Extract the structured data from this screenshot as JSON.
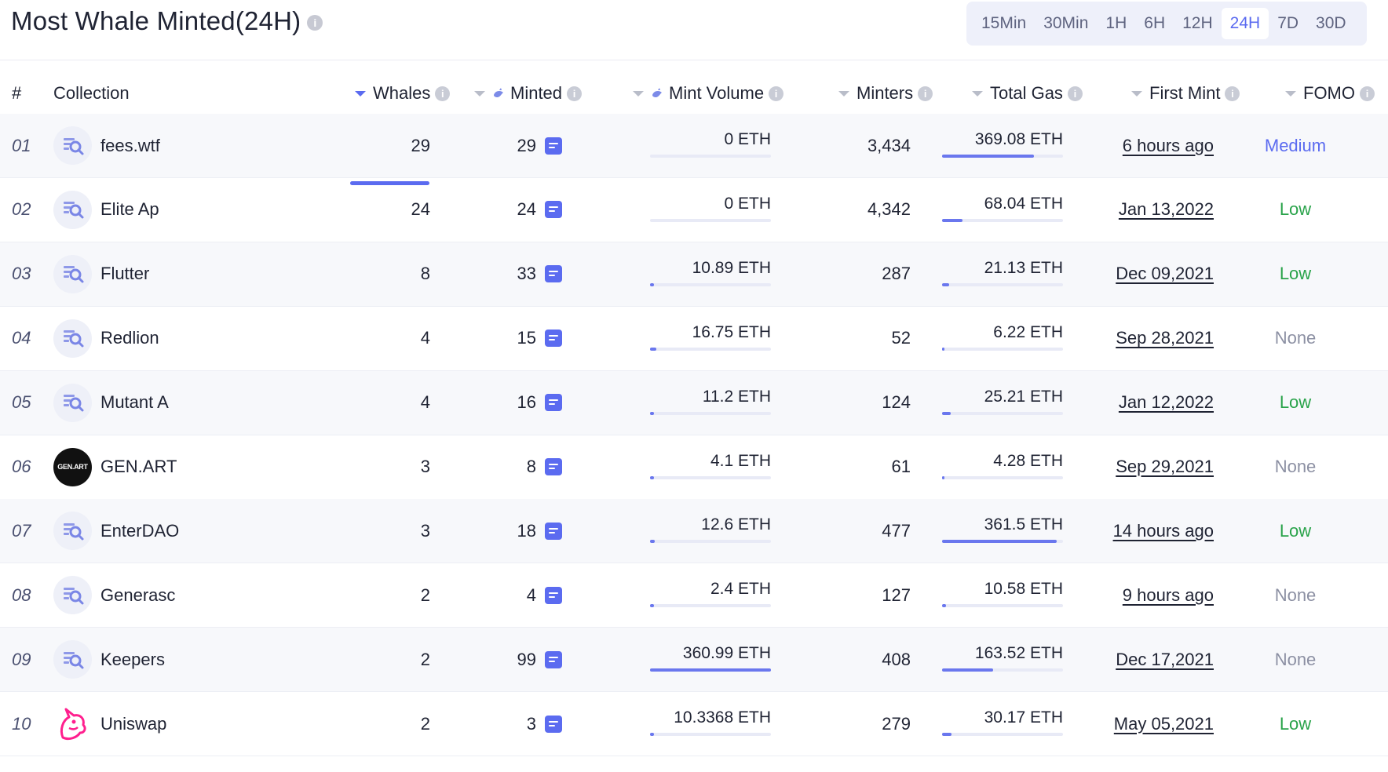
{
  "header": {
    "title": "Most Whale Minted(24H)",
    "info_icon": "i",
    "periods": [
      "15Min",
      "30Min",
      "1H",
      "6H",
      "12H",
      "24H",
      "7D",
      "30D"
    ],
    "active_period": "24H"
  },
  "table": {
    "columns": {
      "rank": "#",
      "collection": "Collection",
      "whales": "Whales",
      "minted": "Minted",
      "mint_volume": "Mint Volume",
      "minters": "Minters",
      "total_gas": "Total Gas",
      "first_mint": "First Mint",
      "fomo": "FOMO"
    },
    "sorted_by": "Whales",
    "rows": [
      {
        "rank": "01",
        "name": "fees.wtf",
        "avatar": "search-icon",
        "whales": "29",
        "minted": "29",
        "mint_volume": "0 ETH",
        "volume_level": 0,
        "minters": "3,434",
        "total_gas": "369.08 ETH",
        "gas_level": 0.76,
        "first_mint": "6 hours ago",
        "fomo": "Medium",
        "fomo_class": "medium"
      },
      {
        "rank": "02",
        "name": "Elite Ap",
        "avatar": "search-icon",
        "whales": "24",
        "minted": "24",
        "mint_volume": "0 ETH",
        "volume_level": 0,
        "minters": "4,342",
        "total_gas": "68.04 ETH",
        "gas_level": 0.17,
        "first_mint": "Jan 13,2022",
        "fomo": "Low",
        "fomo_class": "low"
      },
      {
        "rank": "03",
        "name": "Flutter",
        "avatar": "search-icon",
        "whales": "8",
        "minted": "33",
        "mint_volume": "10.89 ETH",
        "volume_level": 0.03,
        "minters": "287",
        "total_gas": "21.13 ETH",
        "gas_level": 0.06,
        "first_mint": "Dec 09,2021",
        "fomo": "Low",
        "fomo_class": "low"
      },
      {
        "rank": "04",
        "name": "Redlion",
        "avatar": "search-icon",
        "whales": "4",
        "minted": "15",
        "mint_volume": "16.75 ETH",
        "volume_level": 0.05,
        "minters": "52",
        "total_gas": "6.22 ETH",
        "gas_level": 0.02,
        "first_mint": "Sep 28,2021",
        "fomo": "None",
        "fomo_class": "none"
      },
      {
        "rank": "05",
        "name": "Mutant A",
        "avatar": "search-icon",
        "whales": "4",
        "minted": "16",
        "mint_volume": "11.2 ETH",
        "volume_level": 0.03,
        "minters": "124",
        "total_gas": "25.21 ETH",
        "gas_level": 0.07,
        "first_mint": "Jan 12,2022",
        "fomo": "Low",
        "fomo_class": "low"
      },
      {
        "rank": "06",
        "name": "GEN.ART",
        "avatar": "GEN.ART",
        "whales": "3",
        "minted": "8",
        "mint_volume": "4.1 ETH",
        "volume_level": 0.01,
        "minters": "61",
        "total_gas": "4.28 ETH",
        "gas_level": 0.01,
        "first_mint": "Sep 29,2021",
        "fomo": "None",
        "fomo_class": "none"
      },
      {
        "rank": "07",
        "name": "EnterDAO",
        "avatar": "search-icon",
        "whales": "3",
        "minted": "18",
        "mint_volume": "12.6 ETH",
        "volume_level": 0.04,
        "minters": "477",
        "total_gas": "361.5 ETH",
        "gas_level": 0.95,
        "first_mint": "14 hours ago",
        "fomo": "Low",
        "fomo_class": "low"
      },
      {
        "rank": "08",
        "name": "Generasc",
        "avatar": "search-icon",
        "whales": "2",
        "minted": "4",
        "mint_volume": "2.4 ETH",
        "volume_level": 0.01,
        "minters": "127",
        "total_gas": "10.58 ETH",
        "gas_level": 0.03,
        "first_mint": "9 hours ago",
        "fomo": "None",
        "fomo_class": "none"
      },
      {
        "rank": "09",
        "name": "Keepers",
        "avatar": "search-icon",
        "whales": "2",
        "minted": "99",
        "mint_volume": "360.99 ETH",
        "volume_level": 1.0,
        "minters": "408",
        "total_gas": "163.52 ETH",
        "gas_level": 0.42,
        "first_mint": "Dec 17,2021",
        "fomo": "None",
        "fomo_class": "none"
      },
      {
        "rank": "10",
        "name": "Uniswap",
        "avatar": "unicorn-icon",
        "whales": "2",
        "minted": "3",
        "mint_volume": "10.3368 ETH",
        "volume_level": 0.03,
        "minters": "279",
        "total_gas": "30.17 ETH",
        "gas_level": 0.08,
        "first_mint": "May 05,2021",
        "fomo": "Low",
        "fomo_class": "low"
      }
    ]
  }
}
